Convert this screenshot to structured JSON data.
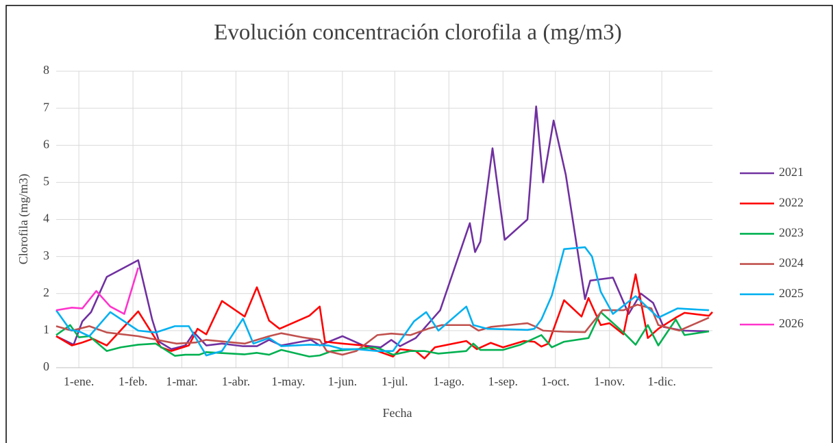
{
  "chart_data": {
    "type": "line",
    "title": "Evolución concentración clorofila a (mg/m3)",
    "x_label": "Fecha",
    "y_label": "Clorofila (mg/m3)",
    "xlim": [
      -13,
      363
    ],
    "ylim": [
      0,
      8
    ],
    "xticks": [
      {
        "value": 0,
        "label": "1-ene."
      },
      {
        "value": 31,
        "label": "1-feb."
      },
      {
        "value": 59,
        "label": "1-mar."
      },
      {
        "value": 90,
        "label": "1-abr."
      },
      {
        "value": 120,
        "label": "1-may."
      },
      {
        "value": 151,
        "label": "1-jun."
      },
      {
        "value": 181,
        "label": "1-jul."
      },
      {
        "value": 212,
        "label": "1-ago."
      },
      {
        "value": 243,
        "label": "1-sep."
      },
      {
        "value": 273,
        "label": "1-oct."
      },
      {
        "value": 304,
        "label": "1-nov."
      },
      {
        "value": 334,
        "label": "1-dic."
      }
    ],
    "yticks": [
      0,
      1,
      2,
      3,
      4,
      5,
      6,
      7,
      8
    ],
    "grid": true,
    "legend": "right",
    "series": [
      {
        "name": "2021",
        "color": "#7030a0",
        "x": [
          -13,
          -3,
          2,
          7,
          16,
          34,
          42,
          46,
          53,
          61,
          66,
          73,
          82,
          94,
          102,
          109,
          116,
          133,
          138,
          151,
          163,
          173,
          179,
          184,
          193,
          207,
          224,
          227,
          230,
          237,
          244,
          257,
          262,
          266,
          272,
          279,
          290,
          293,
          306,
          315,
          322,
          329,
          335,
          346,
          361
        ],
        "values": [
          0.85,
          0.62,
          1.25,
          1.5,
          2.45,
          2.9,
          1.3,
          0.7,
          0.5,
          0.6,
          0.95,
          0.6,
          0.65,
          0.58,
          0.58,
          0.75,
          0.6,
          0.75,
          0.6,
          0.85,
          0.6,
          0.55,
          0.75,
          0.58,
          0.8,
          1.55,
          3.9,
          3.12,
          3.4,
          5.92,
          3.45,
          4.0,
          7.05,
          5.0,
          6.67,
          5.2,
          1.85,
          2.35,
          2.43,
          1.45,
          2.0,
          1.75,
          1.1,
          1.0,
          0.98
        ]
      },
      {
        "name": "2022",
        "color": "#ff0000",
        "x": [
          -13,
          -4,
          2,
          8,
          16,
          34,
          47,
          53,
          63,
          68,
          73,
          82,
          95,
          102,
          109,
          115,
          132,
          138,
          141,
          151,
          163,
          171,
          180,
          184,
          193,
          198,
          204,
          222,
          228,
          236,
          243,
          255,
          261,
          265,
          269,
          278,
          288,
          292,
          299,
          304,
          312,
          319,
          326,
          332,
          342,
          347,
          361,
          363
        ],
        "values": [
          0.85,
          0.6,
          0.68,
          0.78,
          0.6,
          1.52,
          0.55,
          0.45,
          0.6,
          1.05,
          0.9,
          1.8,
          1.38,
          2.17,
          1.27,
          1.05,
          1.4,
          1.65,
          0.7,
          0.65,
          0.6,
          0.45,
          0.3,
          0.5,
          0.45,
          0.25,
          0.55,
          0.72,
          0.5,
          0.67,
          0.55,
          0.72,
          0.7,
          0.57,
          0.65,
          1.82,
          1.38,
          1.88,
          1.15,
          1.2,
          0.9,
          2.52,
          0.8,
          1.05,
          1.35,
          1.48,
          1.4,
          1.5
        ]
      },
      {
        "name": "2023",
        "color": "#00b050",
        "x": [
          -13,
          -5,
          0,
          6,
          16,
          24,
          34,
          44,
          55,
          61,
          69,
          73,
          95,
          102,
          109,
          116,
          132,
          138,
          145,
          159,
          169,
          173,
          180,
          190,
          198,
          206,
          222,
          226,
          230,
          243,
          253,
          265,
          271,
          278,
          292,
          299,
          312,
          319,
          326,
          332,
          342,
          347,
          361
        ],
        "values": [
          0.88,
          1.15,
          0.82,
          0.85,
          0.45,
          0.55,
          0.62,
          0.65,
          0.32,
          0.35,
          0.35,
          0.42,
          0.36,
          0.4,
          0.35,
          0.48,
          0.3,
          0.33,
          0.45,
          0.5,
          0.55,
          0.5,
          0.35,
          0.45,
          0.45,
          0.38,
          0.45,
          0.65,
          0.48,
          0.48,
          0.62,
          0.88,
          0.55,
          0.7,
          0.8,
          1.5,
          0.95,
          0.62,
          1.15,
          0.6,
          1.3,
          0.88,
          0.98
        ]
      },
      {
        "name": "2024",
        "color": "#c0504d",
        "x": [
          -13,
          -4,
          6,
          16,
          34,
          56,
          67,
          73,
          95,
          109,
          116,
          128,
          138,
          142,
          151,
          159,
          171,
          179,
          190,
          200,
          208,
          224,
          229,
          236,
          257,
          262,
          266,
          278,
          290,
          300,
          312,
          320,
          328,
          332,
          344,
          361
        ],
        "values": [
          1.12,
          1.0,
          1.12,
          0.95,
          0.85,
          0.65,
          0.68,
          0.75,
          0.65,
          0.85,
          0.93,
          0.82,
          0.75,
          0.45,
          0.35,
          0.45,
          0.88,
          0.92,
          0.88,
          1.05,
          1.15,
          1.15,
          1.0,
          1.1,
          1.2,
          1.1,
          1.0,
          0.97,
          0.96,
          1.55,
          1.55,
          1.7,
          1.6,
          1.15,
          1.0,
          1.35
        ]
      },
      {
        "name": "2025",
        "color": "#00b0f0",
        "x": [
          -13,
          -5,
          0,
          6,
          18,
          34,
          44,
          55,
          63,
          73,
          82,
          94,
          100,
          109,
          116,
          132,
          143,
          151,
          159,
          171,
          180,
          192,
          199,
          206,
          222,
          226,
          234,
          257,
          261,
          265,
          271,
          278,
          290,
          294,
          299,
          306,
          319,
          332,
          343,
          361
        ],
        "values": [
          1.55,
          1.02,
          0.98,
          0.85,
          1.5,
          1.0,
          0.95,
          1.12,
          1.12,
          0.33,
          0.45,
          1.32,
          0.65,
          0.8,
          0.58,
          0.62,
          0.6,
          0.5,
          0.5,
          0.45,
          0.45,
          1.25,
          1.5,
          1.0,
          1.65,
          1.15,
          1.05,
          1.02,
          1.05,
          1.3,
          1.95,
          3.2,
          3.25,
          3.0,
          2.05,
          1.45,
          1.93,
          1.35,
          1.6,
          1.55
        ]
      },
      {
        "name": "2026",
        "color": "#ff33cc",
        "x": [
          -13,
          -4,
          2,
          10,
          18,
          26,
          34
        ],
        "values": [
          1.55,
          1.62,
          1.6,
          2.07,
          1.65,
          1.45,
          2.7
        ]
      }
    ]
  }
}
